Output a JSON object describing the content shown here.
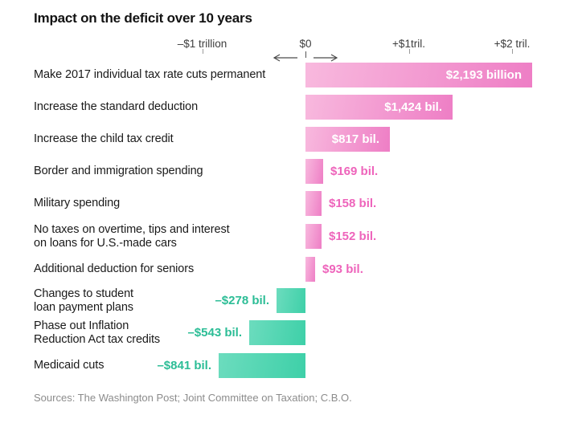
{
  "title": "Impact on the deficit over 10 years",
  "sources": "Sources: The Washington Post; Joint Committee on Taxation; C.B.O.",
  "colors": {
    "pink_light": "#f8b9de",
    "pink_strong": "#ee7ec5",
    "pink_text": "#ee64bb",
    "teal_light": "#6cdcbe",
    "teal_strong": "#3ed0a8",
    "teal_text": "#2cbd96",
    "axis_text": "#3d3d3d",
    "tick_gray": "#9b9b9b",
    "arrow_gray": "#4a4a4a"
  },
  "chart_data": {
    "type": "bar",
    "orientation": "horizontal",
    "units": "billions of U.S. dollars",
    "title": "Impact on the deficit over 10 years",
    "xlim": [
      -1100,
      2450
    ],
    "grid": false,
    "axis_ticks": [
      {
        "label": "–$1 trillion",
        "value": -1000
      },
      {
        "label": "$0",
        "value": 0
      },
      {
        "label": "+$1tril.",
        "value": 1000
      },
      {
        "label": "+$2 tril.",
        "value": 2000
      }
    ],
    "rows": [
      {
        "label": "Make 2017 individual tax rate cuts permanent",
        "lines": [
          "Make 2017 individual tax rate cuts permanent"
        ],
        "value": 2193,
        "value_label": "$2,193 billion",
        "label_position": "inside"
      },
      {
        "label": "Increase the standard deduction",
        "lines": [
          "Increase the standard deduction"
        ],
        "value": 1424,
        "value_label": "$1,424 bil.",
        "label_position": "inside"
      },
      {
        "label": "Increase the child tax credit",
        "lines": [
          "Increase the child tax credit"
        ],
        "value": 817,
        "value_label": "$817 bil.",
        "label_position": "inside"
      },
      {
        "label": "Border and immigration spending",
        "lines": [
          "Border and immigration spending"
        ],
        "value": 169,
        "value_label": "$169 bil.",
        "label_position": "right"
      },
      {
        "label": "Military spending",
        "lines": [
          "Military spending"
        ],
        "value": 158,
        "value_label": "$158 bil.",
        "label_position": "right"
      },
      {
        "label": "No taxes on overtime, tips and interest on loans for U.S.-made cars",
        "lines": [
          "No taxes on overtime, tips and interest",
          "on loans for U.S.-made cars"
        ],
        "value": 152,
        "value_label": "$152 bil.",
        "label_position": "right"
      },
      {
        "label": "Additional deduction for seniors",
        "lines": [
          "Additional deduction for seniors"
        ],
        "value": 93,
        "value_label": "$93 bil.",
        "label_position": "right"
      },
      {
        "label": "Changes to student loan payment plans",
        "lines": [
          "Changes to student",
          "loan payment plans"
        ],
        "value": -278,
        "value_label": "–$278 bil.",
        "label_position": "left"
      },
      {
        "label": "Phase out Inflation Reduction Act tax credits",
        "lines": [
          "Phase out Inflation",
          "Reduction Act tax credits"
        ],
        "value": -543,
        "value_label": "–$543 bil.",
        "label_position": "left"
      },
      {
        "label": "Medicaid cuts",
        "lines": [
          "Medicaid cuts"
        ],
        "value": -841,
        "value_label": "–$841 bil.",
        "label_position": "left"
      }
    ]
  }
}
